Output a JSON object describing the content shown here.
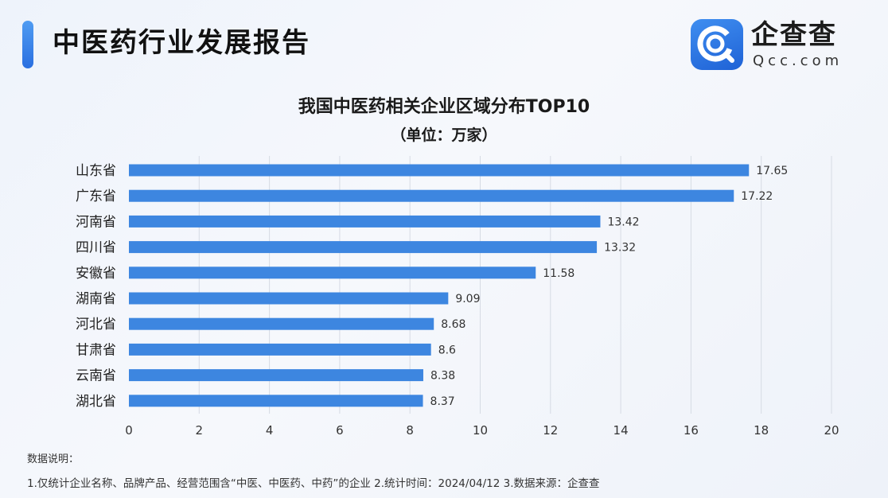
{
  "header": {
    "report_title": "中医药行业发展报告",
    "brand_name": "企查查",
    "brand_sub": "Qcc.com",
    "accent_color": "#2f7fe8"
  },
  "chart_data": {
    "type": "bar",
    "orientation": "horizontal",
    "title": "我国中医药相关企业区域分布TOP10",
    "subtitle": "（单位：万家）",
    "categories": [
      "山东省",
      "广东省",
      "河南省",
      "四川省",
      "安徽省",
      "湖南省",
      "河北省",
      "甘肃省",
      "云南省",
      "湖北省"
    ],
    "values": [
      17.65,
      17.22,
      13.42,
      13.32,
      11.58,
      9.09,
      8.68,
      8.6,
      8.38,
      8.37
    ],
    "value_labels": [
      "17.65",
      "17.22",
      "13.42",
      "13.32",
      "11.58",
      "9.09",
      "8.68",
      "8.6",
      "8.38",
      "8.37"
    ],
    "xlim": [
      0,
      20
    ],
    "xticks": [
      "0",
      "2",
      "4",
      "6",
      "8",
      "10",
      "12",
      "14",
      "16",
      "18",
      "20"
    ],
    "grid": true,
    "bar_color": "#3d86e0"
  },
  "notes": {
    "heading": "数据说明：",
    "text": "1.仅统计企业名称、品牌产品、经营范围含“中医、中医药、中药”的企业  2.统计时间：2024/04/12   3.数据来源：企查查"
  }
}
